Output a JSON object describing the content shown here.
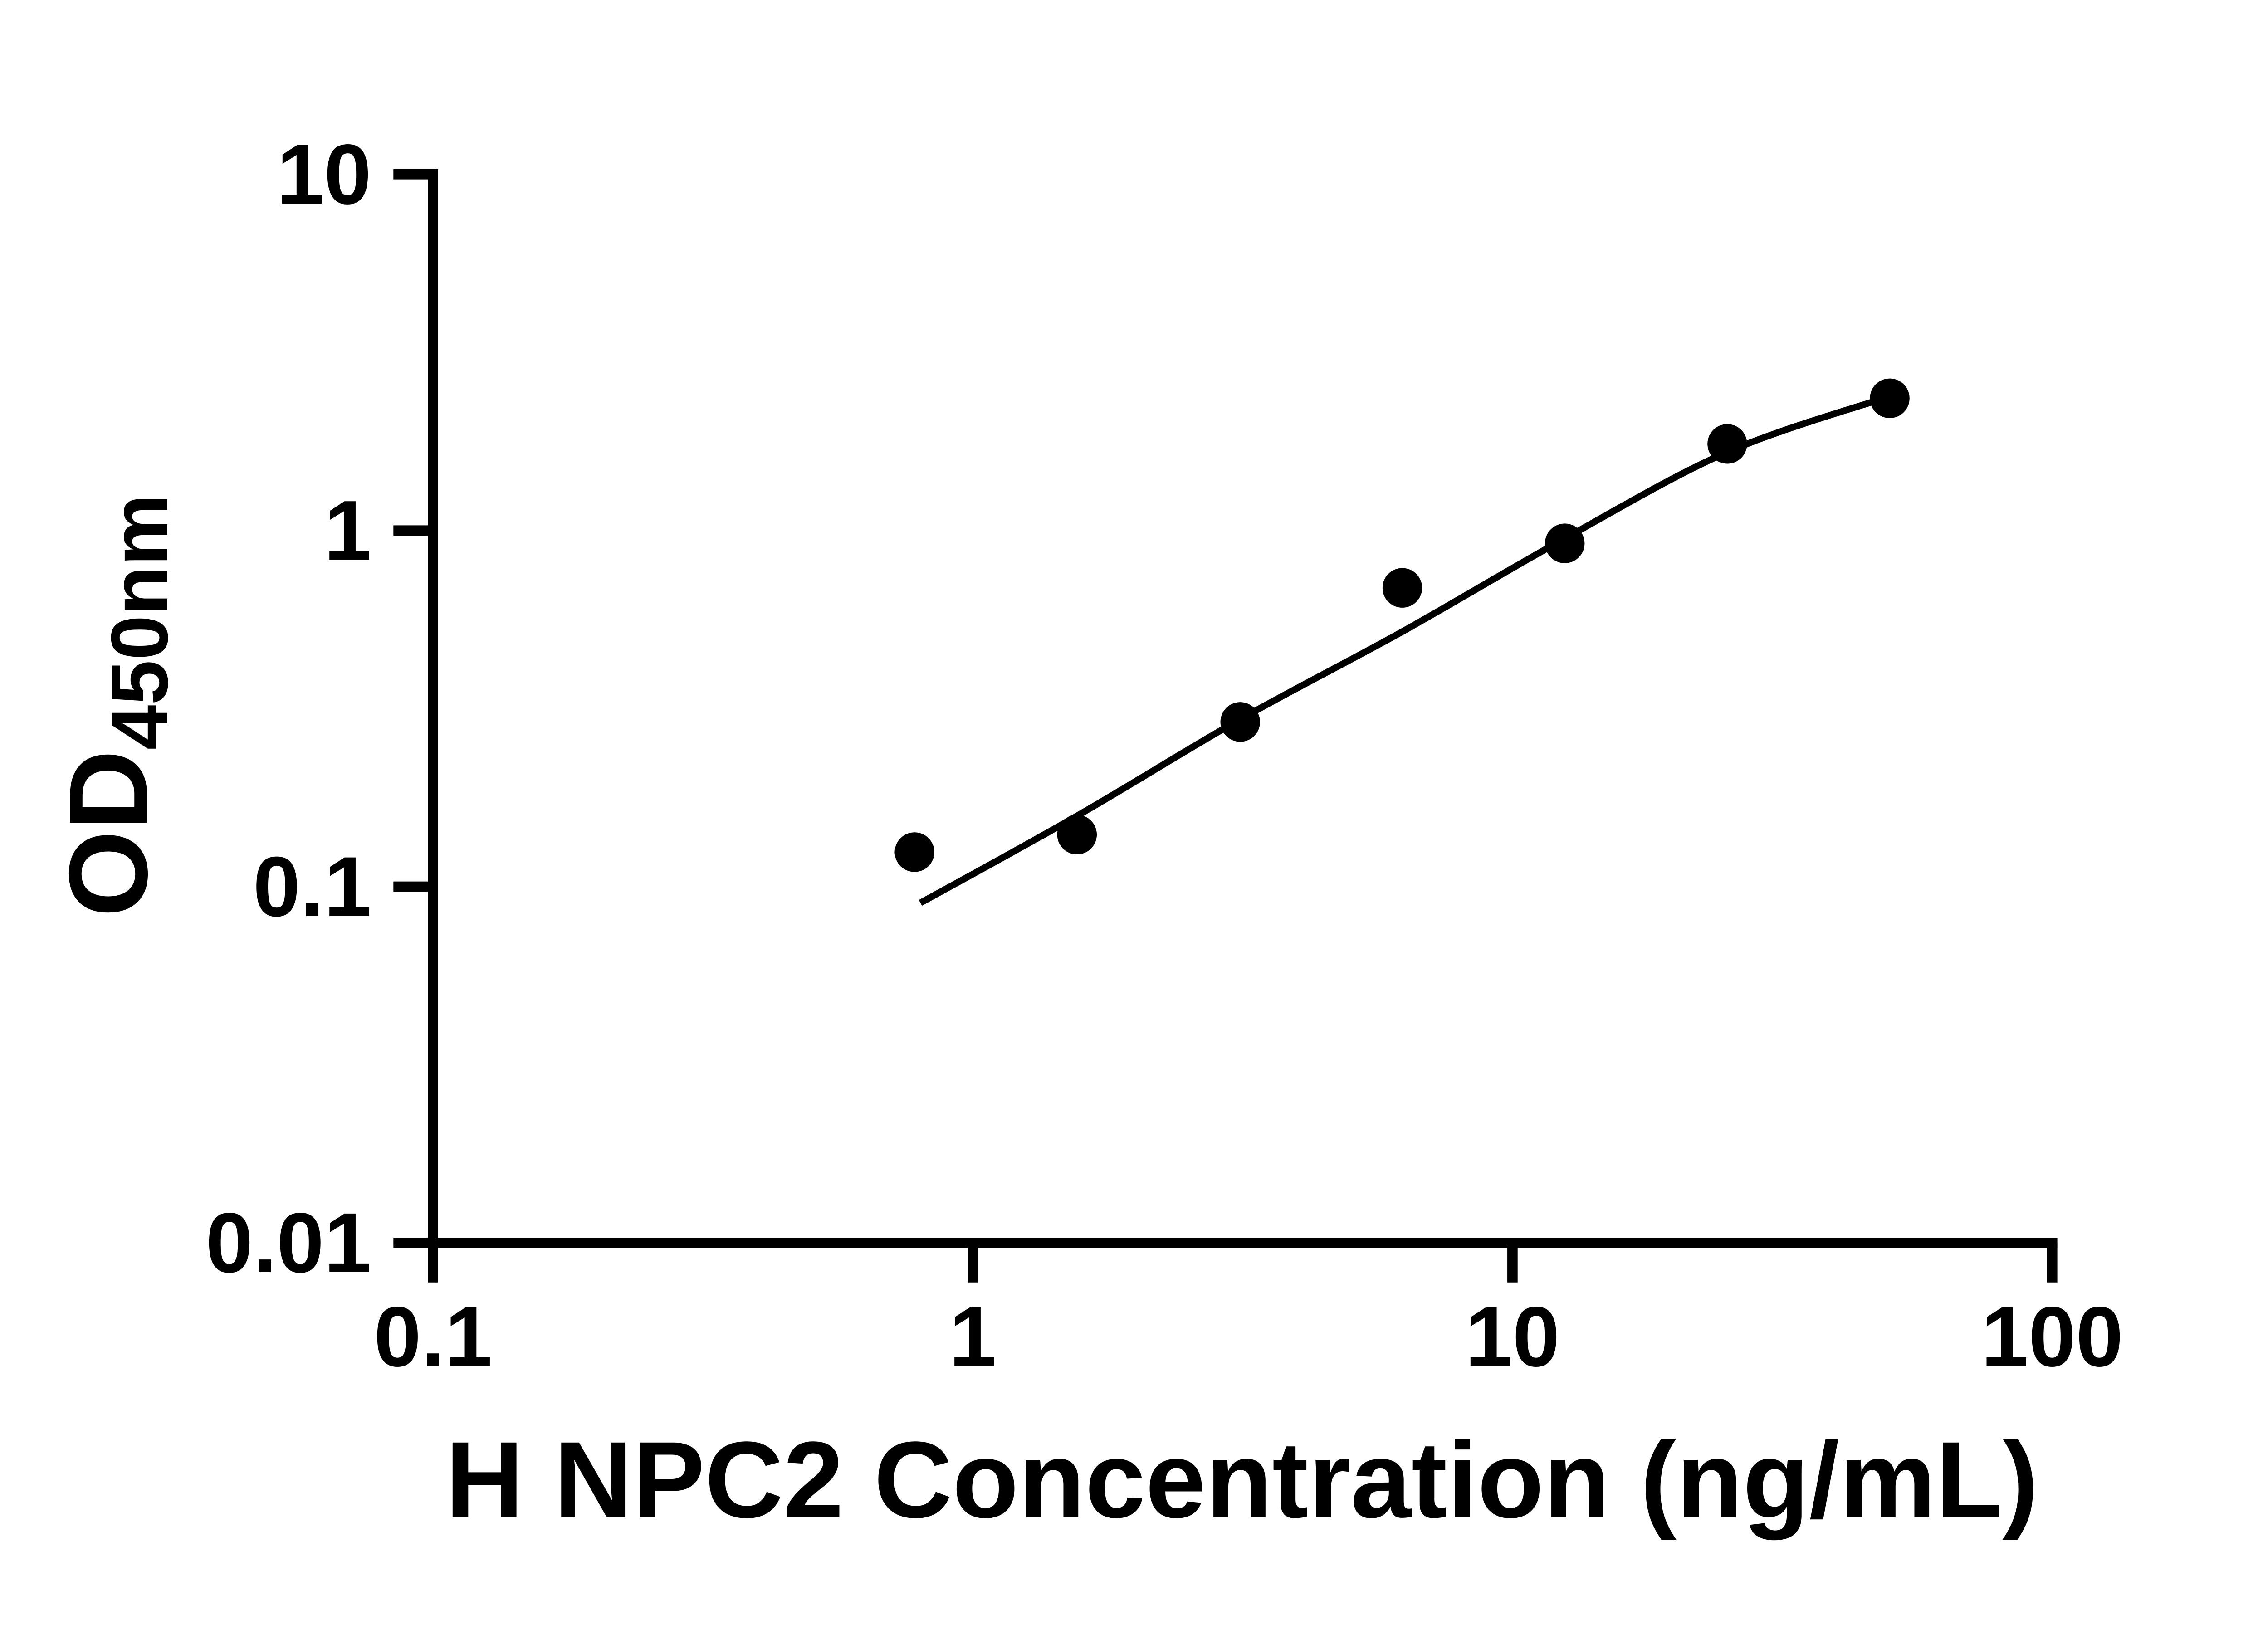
{
  "page": {
    "background_color": "#ffffff"
  },
  "chart_data": {
    "type": "scatter",
    "title": "",
    "xlabel": "H NPC2 Concentration (ng/mL)",
    "ylabel": "OD450nm",
    "ylabel_main": "OD",
    "ylabel_sub": "450nm",
    "x_scale": "log",
    "y_scale": "log",
    "xlim": [
      0.1,
      100
    ],
    "ylim": [
      0.01,
      10
    ],
    "x_ticks": [
      "0.1",
      "1",
      "10",
      "100"
    ],
    "y_ticks": [
      "0.01",
      "0.1",
      "1",
      "10"
    ],
    "grid": false,
    "legend": null,
    "axis_color": "#000000",
    "line_color": "#000000",
    "marker": {
      "shape": "circle",
      "color": "#000000",
      "radius": 13.5
    },
    "points": [
      {
        "conc": 0.78,
        "od": 0.125
      },
      {
        "conc": 1.56,
        "od": 0.14
      },
      {
        "conc": 3.13,
        "od": 0.29
      },
      {
        "conc": 6.25,
        "od": 0.69
      },
      {
        "conc": 12.5,
        "od": 0.92
      },
      {
        "conc": 25,
        "od": 1.75
      },
      {
        "conc": 50,
        "od": 2.35
      }
    ],
    "fit_curve": [
      {
        "conc": 0.8,
        "od": 0.09
      },
      {
        "conc": 1.56,
        "od": 0.158
      },
      {
        "conc": 3.13,
        "od": 0.295
      },
      {
        "conc": 6.25,
        "od": 0.52
      },
      {
        "conc": 12.5,
        "od": 0.95
      },
      {
        "conc": 25,
        "od": 1.66
      },
      {
        "conc": 50,
        "od": 2.38
      }
    ]
  }
}
